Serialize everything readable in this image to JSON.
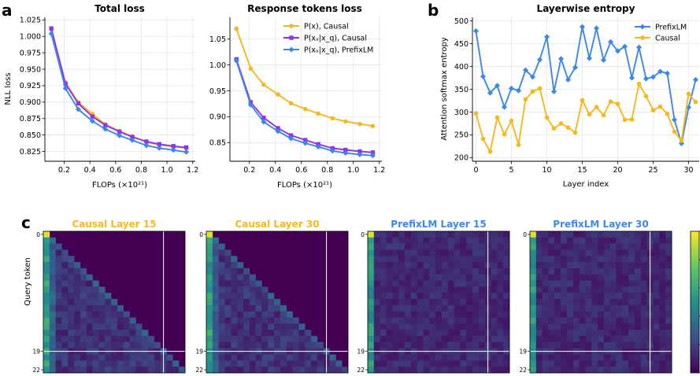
{
  "panel_letters": [
    "a",
    "b",
    "c"
  ],
  "colors": {
    "causal_px": "#f5b81f",
    "causal_xa": "#8e35ef",
    "prefixlm": "#3d87e8",
    "prefixlm_b": "#3d87e8",
    "causal_b": "#f5b81f",
    "heat_bg": "#440154"
  },
  "chart_data": [
    {
      "type": "line",
      "title": "Total loss",
      "xlabel": "FLOPs (×10²¹)",
      "ylabel": "NLL loss",
      "xlim": [
        0.05,
        1.22
      ],
      "ylim": [
        0.81,
        1.029
      ],
      "xticks": [
        0.2,
        0.4,
        0.6,
        0.8,
        1.0,
        1.2
      ],
      "xtick_labels": [
        "0.2",
        "0.4",
        "0.6",
        "0.8",
        "1.0",
        "1.2"
      ],
      "yticks": [
        0.825,
        0.85,
        0.875,
        0.9,
        0.925,
        0.95,
        0.975,
        1.0,
        1.025
      ],
      "ytick_labels": [
        "0.825",
        "0.850",
        "0.875",
        "0.900",
        "0.925",
        "0.950",
        "0.975",
        "1.000",
        "1.025"
      ],
      "grid": true,
      "x": [
        0.1,
        0.21,
        0.31,
        0.42,
        0.52,
        0.63,
        0.73,
        0.84,
        0.94,
        1.05,
        1.15
      ],
      "series": [
        {
          "color_key": "causal_px",
          "marker": "circle",
          "values": [
            1.01,
            0.93,
            0.9,
            0.882,
            0.866,
            0.856,
            0.848,
            0.839,
            0.835,
            0.832,
            0.83
          ]
        },
        {
          "color_key": "causal_xa",
          "marker": "square",
          "values": [
            1.012,
            0.928,
            0.898,
            0.878,
            0.865,
            0.855,
            0.847,
            0.84,
            0.836,
            0.833,
            0.831
          ]
        },
        {
          "color_key": "prefixlm",
          "marker": "diamond",
          "values": [
            1.004,
            0.921,
            0.889,
            0.871,
            0.859,
            0.849,
            0.842,
            0.834,
            0.83,
            0.827,
            0.824
          ]
        }
      ]
    },
    {
      "type": "line",
      "title": "Response tokens loss",
      "xlabel": "FLOPs (×10²¹)",
      "ylabel": "",
      "xlim": [
        0.05,
        1.22
      ],
      "ylim": [
        0.814,
        1.092
      ],
      "xticks": [
        0.2,
        0.4,
        0.6,
        0.8,
        1.0,
        1.2
      ],
      "xtick_labels": [
        "0.2",
        "0.4",
        "0.6",
        "0.8",
        "1.0",
        "1.2"
      ],
      "yticks": [
        0.85,
        0.9,
        0.95,
        1.0,
        1.05
      ],
      "ytick_labels": [
        "0.85",
        "0.90",
        "0.95",
        "1.00",
        "1.05"
      ],
      "grid": true,
      "legend": "top-right",
      "x": [
        0.1,
        0.21,
        0.31,
        0.42,
        0.52,
        0.63,
        0.73,
        0.84,
        0.94,
        1.05,
        1.15
      ],
      "series": [
        {
          "name": "P(x), Causal",
          "color_key": "causal_px",
          "marker": "circle",
          "values": [
            1.07,
            0.993,
            0.962,
            0.943,
            0.926,
            0.915,
            0.906,
            0.897,
            0.891,
            0.886,
            0.882
          ]
        },
        {
          "name": "P(xₐ|x_q), Causal",
          "color_key": "causal_xa",
          "marker": "square",
          "values": [
            1.011,
            0.928,
            0.898,
            0.878,
            0.864,
            0.855,
            0.847,
            0.839,
            0.836,
            0.833,
            0.831
          ]
        },
        {
          "name": "P(xₐ|x_q), PrefixLM",
          "color_key": "prefixlm",
          "marker": "diamond",
          "values": [
            1.008,
            0.923,
            0.89,
            0.872,
            0.858,
            0.849,
            0.842,
            0.834,
            0.83,
            0.827,
            0.825
          ]
        }
      ]
    },
    {
      "type": "line",
      "title": "Layerwise entropy",
      "xlabel": "Layer index",
      "ylabel": "Attention softmax entropy",
      "xlim": [
        -0.5,
        31.5
      ],
      "ylim": [
        192,
        508
      ],
      "xticks": [
        0,
        5,
        10,
        15,
        20,
        25,
        30
      ],
      "xtick_labels": [
        "0",
        "5",
        "10",
        "15",
        "20",
        "25",
        "30"
      ],
      "yticks": [
        200,
        250,
        300,
        350,
        400,
        450,
        500
      ],
      "ytick_labels": [
        "200",
        "250",
        "300",
        "350",
        "400",
        "450",
        "500"
      ],
      "grid": true,
      "legend": "top-right",
      "x": [
        0,
        1,
        2,
        3,
        4,
        5,
        6,
        7,
        8,
        9,
        10,
        11,
        12,
        13,
        14,
        15,
        16,
        17,
        18,
        19,
        20,
        21,
        22,
        23,
        24,
        25,
        26,
        27,
        28,
        29,
        30,
        31
      ],
      "series": [
        {
          "name": "PrefixLM",
          "color_key": "prefixlm_b",
          "marker": "diamond",
          "values": [
            478,
            378,
            342,
            358,
            311,
            352,
            347,
            392,
            377,
            415,
            465,
            345,
            417,
            371,
            398,
            487,
            418,
            484,
            414,
            454,
            434,
            444,
            375,
            442,
            373,
            377,
            389,
            385,
            283,
            231,
            310,
            371
          ]
        },
        {
          "name": "Causal",
          "color_key": "causal_b",
          "marker": "circle",
          "values": [
            297,
            241,
            213,
            288,
            251,
            281,
            228,
            328,
            345,
            352,
            288,
            264,
            275,
            266,
            255,
            326,
            295,
            311,
            293,
            323,
            318,
            283,
            284,
            362,
            335,
            304,
            312,
            296,
            257,
            237,
            340,
            322
          ]
        }
      ]
    },
    {
      "type": "heatmap",
      "panels": [
        {
          "title": "Causal Layer 15",
          "title_color_key": "causal_px",
          "causal": true,
          "ylabel": "Query token",
          "yticks": [
            "0",
            "19",
            "22"
          ]
        },
        {
          "title": "Causal Layer 30",
          "title_color_key": "causal_px",
          "causal": true,
          "yticks": [
            "0",
            "19",
            "22"
          ]
        },
        {
          "title": "PrefixLM Layer 15",
          "title_color_key": "prefixlm",
          "causal": false,
          "yticks": [
            "0",
            "19",
            "22"
          ]
        },
        {
          "title": "PrefixLM Layer 30",
          "title_color_key": "prefixlm",
          "causal": false,
          "yticks": [
            "0",
            "19",
            "22"
          ]
        }
      ],
      "grid_size": 23,
      "divider_index": 19,
      "colorscale": "viridis"
    }
  ]
}
